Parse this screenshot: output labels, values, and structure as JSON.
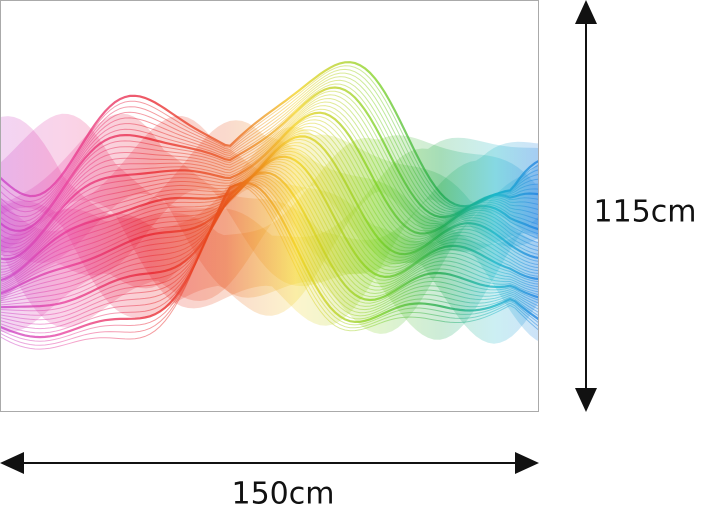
{
  "dimensions": {
    "height": "115cm",
    "width": "150cm"
  }
}
